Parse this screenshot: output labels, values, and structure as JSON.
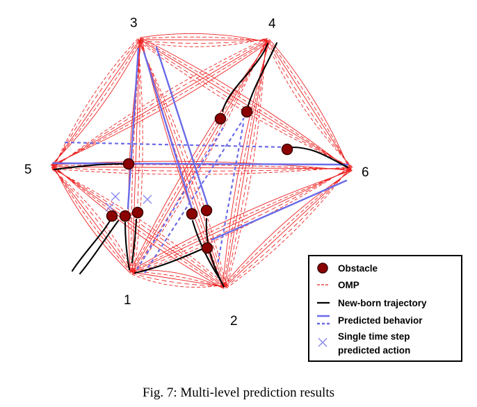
{
  "caption": "Fig. 7: Multi-level prediction results",
  "nodes": [
    {
      "id": "1",
      "label": "1"
    },
    {
      "id": "2",
      "label": "2"
    },
    {
      "id": "3",
      "label": "3"
    },
    {
      "id": "4",
      "label": "4"
    },
    {
      "id": "5",
      "label": "5"
    },
    {
      "id": "6",
      "label": "6"
    }
  ],
  "legend": {
    "items": [
      {
        "key": "obstacle",
        "label": "Obstacle"
      },
      {
        "key": "omp",
        "label": "OMP"
      },
      {
        "key": "new_born",
        "label": "New-born trajectory"
      },
      {
        "key": "predicted",
        "label": "Predicted behavior"
      },
      {
        "key": "single_step",
        "label": "Single time step",
        "label2": "predicted action"
      }
    ]
  },
  "colors": {
    "omp": "#ee2222",
    "trajectory": "#000000",
    "predicted": "#6a6ae8",
    "obstacle": "#8b0000",
    "obstacle_stroke": "#3a0000"
  }
}
